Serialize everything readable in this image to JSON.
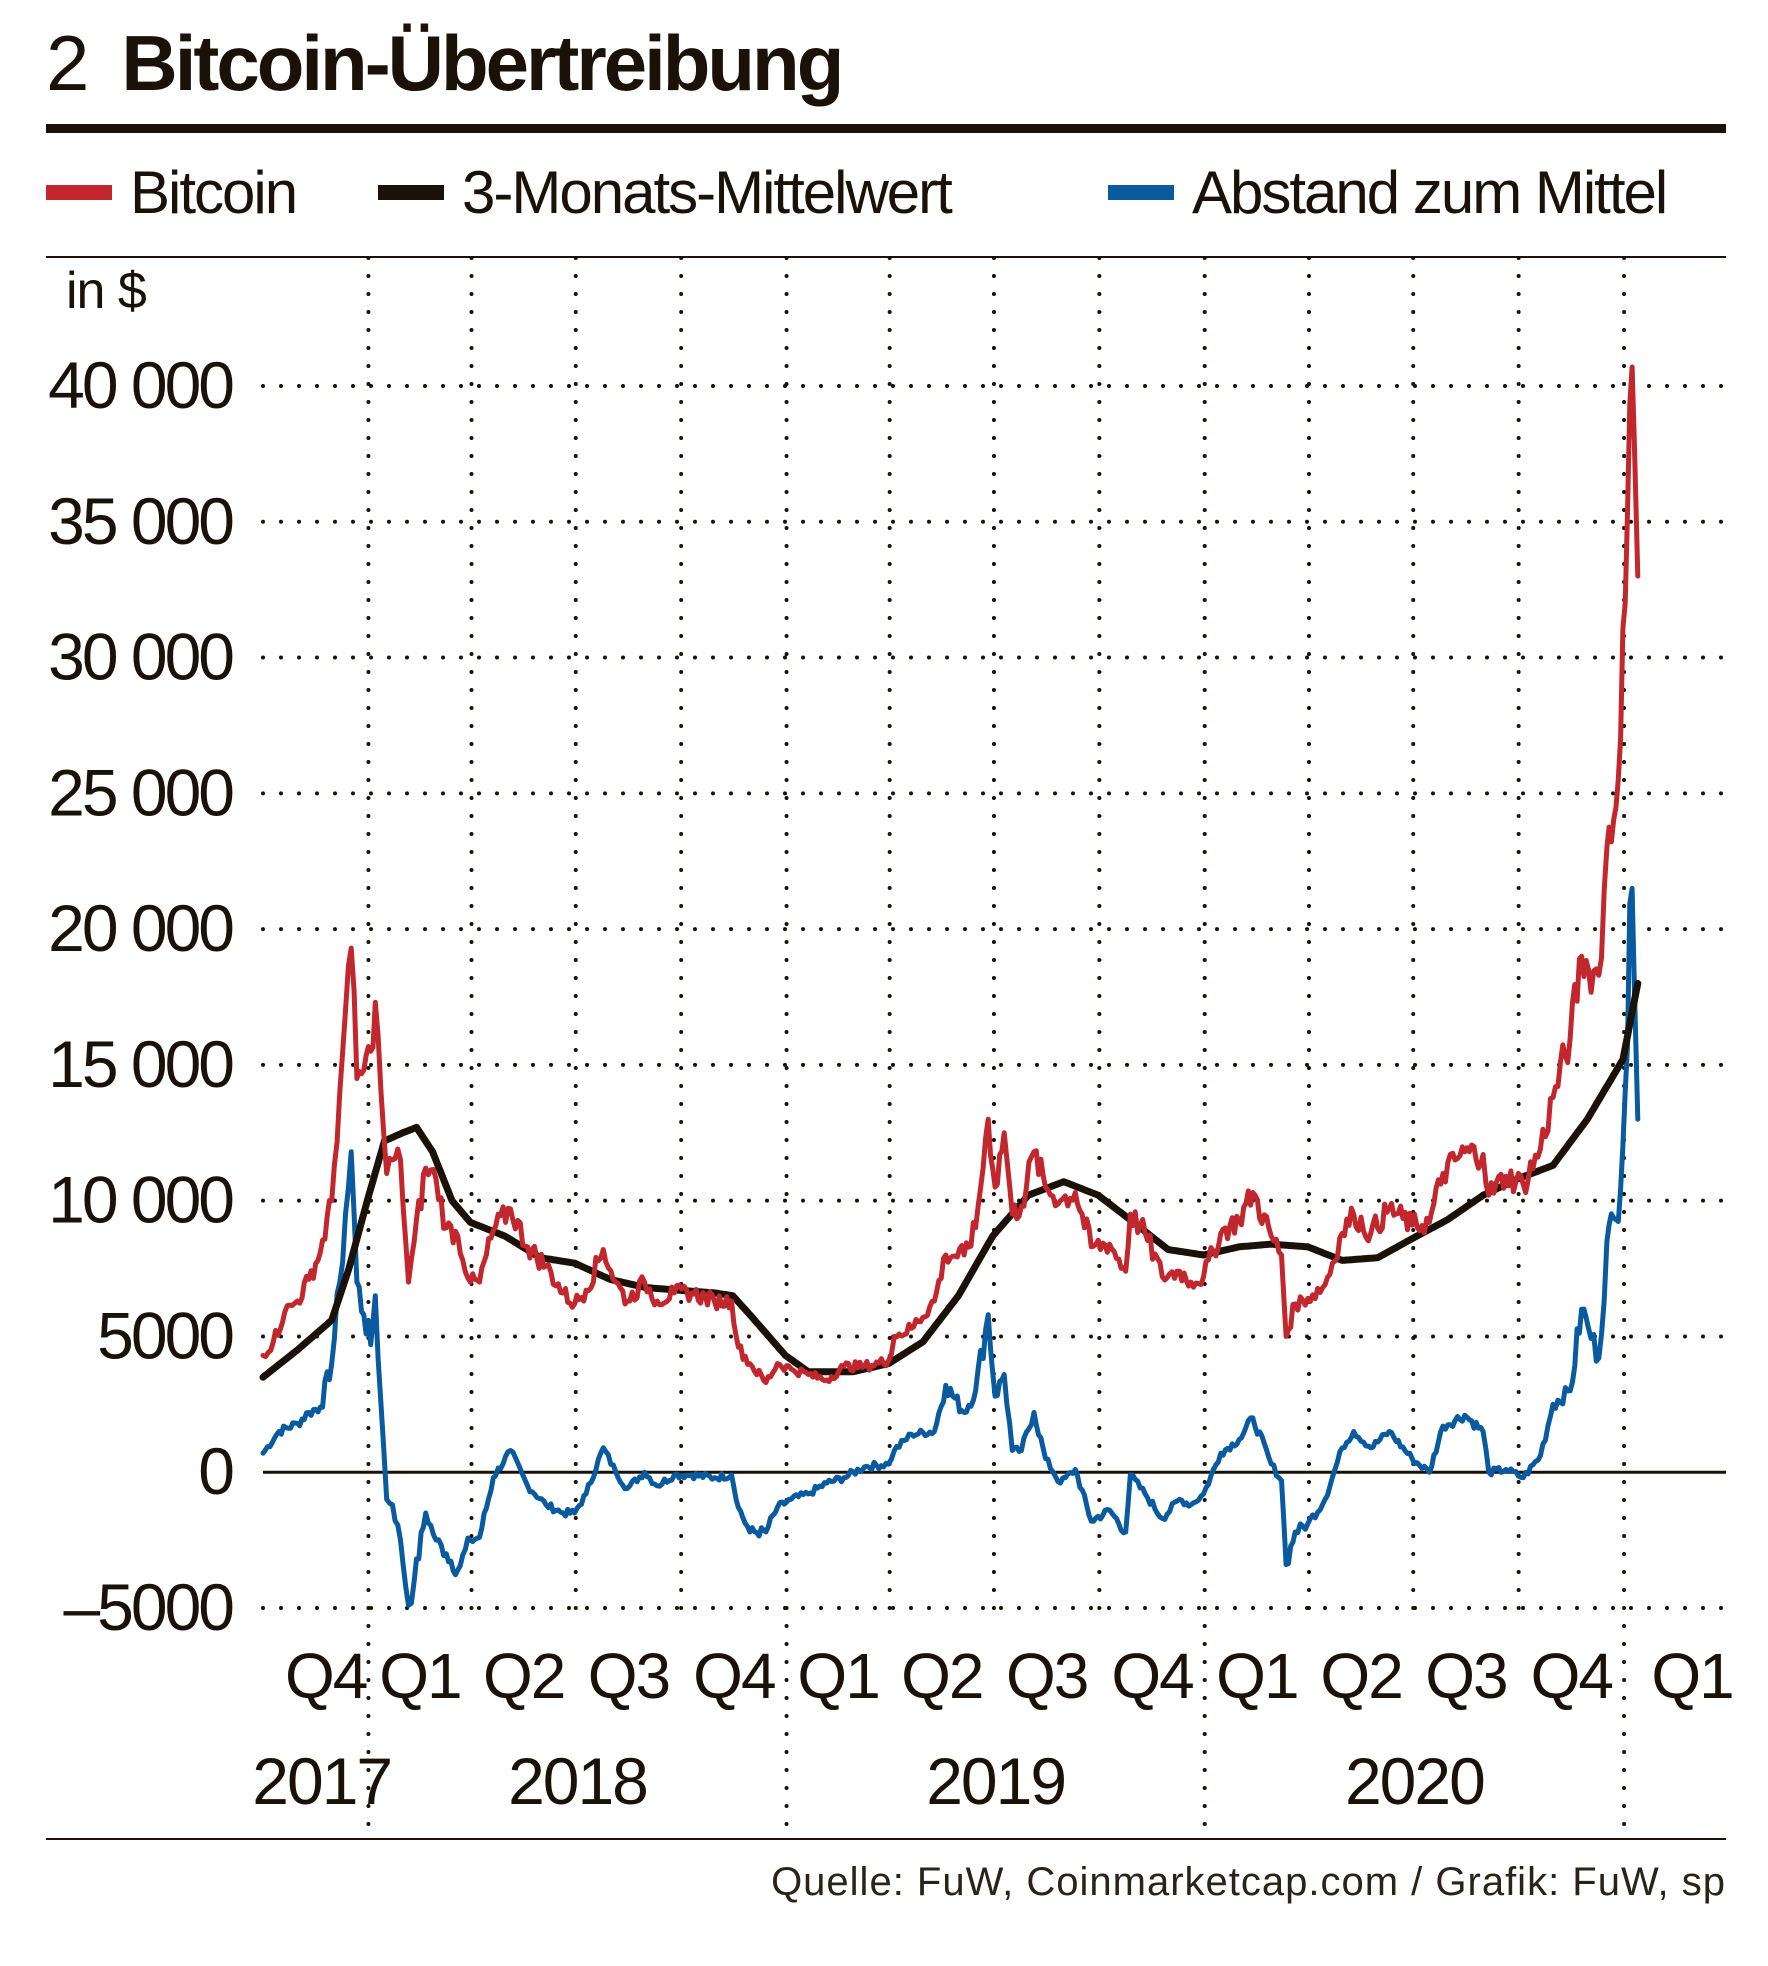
{
  "header": {
    "number": "2",
    "title": "Bitcoin-Übertreibung"
  },
  "legend": [
    {
      "label": "Bitcoin",
      "color": "#c1272d"
    },
    {
      "label": "3-Monats-Mittelwert",
      "color": "#1a1208"
    },
    {
      "label": "Abstand zum Mittel",
      "color": "#0a5aa0"
    }
  ],
  "source": "Quelle: FuW, Coinmarketcap.com / Grafik: FuW, sp",
  "chart_data": {
    "type": "line",
    "unit_label": "in $",
    "ylim": [
      -5000,
      40000
    ],
    "yticks": [
      {
        "value": 40000,
        "label": "40 000"
      },
      {
        "value": 35000,
        "label": "35 000"
      },
      {
        "value": 30000,
        "label": "30 000"
      },
      {
        "value": 25000,
        "label": "25 000"
      },
      {
        "value": 20000,
        "label": "20 000"
      },
      {
        "value": 15000,
        "label": "15 000"
      },
      {
        "value": 10000,
        "label": "10 000"
      },
      {
        "value": 5000,
        "label": "5000"
      },
      {
        "value": 0,
        "label": "0"
      },
      {
        "value": -5000,
        "label": "–5000"
      }
    ],
    "xlim": [
      "2017-10-01",
      "2021-03-31"
    ],
    "x_quarter_labels": [
      "Q4",
      "Q1",
      "Q2",
      "Q3",
      "Q4",
      "Q1",
      "Q2",
      "Q3",
      "Q4",
      "Q1",
      "Q2",
      "Q3",
      "Q4",
      "Q1"
    ],
    "x_year_labels": [
      "2017",
      "2018",
      "2019",
      "2020"
    ],
    "grid": "dotted",
    "legend_position": "top",
    "series": [
      {
        "name": "Bitcoin",
        "color": "#c1272d",
        "points": [
          [
            "2017-10-01",
            4300
          ],
          [
            "2017-10-10",
            4800
          ],
          [
            "2017-10-20",
            5900
          ],
          [
            "2017-10-31",
            6300
          ],
          [
            "2017-11-10",
            7100
          ],
          [
            "2017-11-20",
            8100
          ],
          [
            "2017-11-30",
            10000
          ],
          [
            "2017-12-07",
            14000
          ],
          [
            "2017-12-12",
            17000
          ],
          [
            "2017-12-17",
            19300
          ],
          [
            "2017-12-22",
            14500
          ],
          [
            "2017-12-28",
            14800
          ],
          [
            "2018-01-03",
            15500
          ],
          [
            "2018-01-07",
            17300
          ],
          [
            "2018-01-12",
            14000
          ],
          [
            "2018-01-17",
            11000
          ],
          [
            "2018-01-22",
            11500
          ],
          [
            "2018-01-29",
            11500
          ],
          [
            "2018-02-05",
            7000
          ],
          [
            "2018-02-10",
            8500
          ],
          [
            "2018-02-20",
            11200
          ],
          [
            "2018-03-01",
            10800
          ],
          [
            "2018-03-10",
            9000
          ],
          [
            "2018-03-20",
            8700
          ],
          [
            "2018-03-31",
            7000
          ],
          [
            "2018-04-08",
            7000
          ],
          [
            "2018-04-20",
            8900
          ],
          [
            "2018-05-05",
            9700
          ],
          [
            "2018-05-20",
            8300
          ],
          [
            "2018-06-05",
            7600
          ],
          [
            "2018-06-20",
            6600
          ],
          [
            "2018-06-30",
            6200
          ],
          [
            "2018-07-10",
            6700
          ],
          [
            "2018-07-25",
            8200
          ],
          [
            "2018-08-05",
            7000
          ],
          [
            "2018-08-15",
            6300
          ],
          [
            "2018-08-30",
            7000
          ],
          [
            "2018-09-10",
            6300
          ],
          [
            "2018-09-25",
            6600
          ],
          [
            "2018-10-10",
            6600
          ],
          [
            "2018-10-30",
            6300
          ],
          [
            "2018-11-14",
            6300
          ],
          [
            "2018-11-20",
            4600
          ],
          [
            "2018-11-30",
            4000
          ],
          [
            "2018-12-14",
            3300
          ],
          [
            "2018-12-24",
            4000
          ],
          [
            "2019-01-05",
            3800
          ],
          [
            "2019-01-20",
            3600
          ],
          [
            "2019-02-05",
            3400
          ],
          [
            "2019-02-20",
            3900
          ],
          [
            "2019-03-10",
            3900
          ],
          [
            "2019-03-31",
            4100
          ],
          [
            "2019-04-05",
            5000
          ],
          [
            "2019-04-20",
            5300
          ],
          [
            "2019-05-10",
            6300
          ],
          [
            "2019-05-20",
            8000
          ],
          [
            "2019-06-05",
            8000
          ],
          [
            "2019-06-15",
            9000
          ],
          [
            "2019-06-26",
            13000
          ],
          [
            "2019-07-02",
            10500
          ],
          [
            "2019-07-10",
            12500
          ],
          [
            "2019-07-17",
            9500
          ],
          [
            "2019-07-25",
            9800
          ],
          [
            "2019-08-05",
            11800
          ],
          [
            "2019-08-15",
            10500
          ],
          [
            "2019-08-28",
            10000
          ],
          [
            "2019-09-10",
            10300
          ],
          [
            "2019-09-24",
            8300
          ],
          [
            "2019-10-10",
            8400
          ],
          [
            "2019-10-24",
            7400
          ],
          [
            "2019-10-28",
            9500
          ],
          [
            "2019-11-10",
            8800
          ],
          [
            "2019-11-25",
            7200
          ],
          [
            "2019-12-10",
            7400
          ],
          [
            "2019-12-20",
            7000
          ],
          [
            "2019-12-31",
            7200
          ],
          [
            "2020-01-15",
            8800
          ],
          [
            "2020-01-31",
            9300
          ],
          [
            "2020-02-12",
            10300
          ],
          [
            "2020-02-28",
            8700
          ],
          [
            "2020-03-08",
            8000
          ],
          [
            "2020-03-12",
            5000
          ],
          [
            "2020-03-20",
            6200
          ],
          [
            "2020-03-31",
            6400
          ],
          [
            "2020-04-15",
            6900
          ],
          [
            "2020-04-30",
            8800
          ],
          [
            "2020-05-10",
            9500
          ],
          [
            "2020-05-25",
            8800
          ],
          [
            "2020-06-10",
            9700
          ],
          [
            "2020-06-30",
            9100
          ],
          [
            "2020-07-15",
            9200
          ],
          [
            "2020-07-27",
            11000
          ],
          [
            "2020-08-15",
            11800
          ],
          [
            "2020-08-31",
            11700
          ],
          [
            "2020-09-05",
            10200
          ],
          [
            "2020-09-20",
            10900
          ],
          [
            "2020-10-05",
            10600
          ],
          [
            "2020-10-20",
            11900
          ],
          [
            "2020-10-31",
            13800
          ],
          [
            "2020-11-15",
            16000
          ],
          [
            "2020-11-25",
            19000
          ],
          [
            "2020-12-01",
            18500
          ],
          [
            "2020-12-10",
            18300
          ],
          [
            "2020-12-17",
            23000
          ],
          [
            "2020-12-25",
            24500
          ],
          [
            "2021-01-02",
            32000
          ],
          [
            "2021-01-08",
            40700
          ],
          [
            "2021-01-10",
            38000
          ],
          [
            "2021-01-13",
            33000
          ]
        ]
      },
      {
        "name": "3-Monats-Mittelwert",
        "color": "#1a1208",
        "points": [
          [
            "2017-10-01",
            3500
          ],
          [
            "2017-10-31",
            4500
          ],
          [
            "2017-11-30",
            5600
          ],
          [
            "2017-12-15",
            7500
          ],
          [
            "2017-12-31",
            10000
          ],
          [
            "2018-01-15",
            12200
          ],
          [
            "2018-01-31",
            12500
          ],
          [
            "2018-02-12",
            12700
          ],
          [
            "2018-02-26",
            11800
          ],
          [
            "2018-03-15",
            10000
          ],
          [
            "2018-03-31",
            9200
          ],
          [
            "2018-04-30",
            8700
          ],
          [
            "2018-05-31",
            7900
          ],
          [
            "2018-06-30",
            7700
          ],
          [
            "2018-07-31",
            7100
          ],
          [
            "2018-08-31",
            6800
          ],
          [
            "2018-09-30",
            6700
          ],
          [
            "2018-10-31",
            6600
          ],
          [
            "2018-11-15",
            6500
          ],
          [
            "2018-11-30",
            5800
          ],
          [
            "2018-12-31",
            4300
          ],
          [
            "2019-01-20",
            3700
          ],
          [
            "2019-02-28",
            3700
          ],
          [
            "2019-03-31",
            4000
          ],
          [
            "2019-04-30",
            4800
          ],
          [
            "2019-05-31",
            6500
          ],
          [
            "2019-06-30",
            8700
          ],
          [
            "2019-07-31",
            10200
          ],
          [
            "2019-08-31",
            10700
          ],
          [
            "2019-09-30",
            10200
          ],
          [
            "2019-10-31",
            9200
          ],
          [
            "2019-11-30",
            8200
          ],
          [
            "2019-12-31",
            8000
          ],
          [
            "2020-01-31",
            8300
          ],
          [
            "2020-02-28",
            8400
          ],
          [
            "2020-03-31",
            8300
          ],
          [
            "2020-04-30",
            7800
          ],
          [
            "2020-05-31",
            7900
          ],
          [
            "2020-06-30",
            8600
          ],
          [
            "2020-07-31",
            9300
          ],
          [
            "2020-08-31",
            10200
          ],
          [
            "2020-09-30",
            10800
          ],
          [
            "2020-10-31",
            11300
          ],
          [
            "2020-11-30",
            13000
          ],
          [
            "2020-12-31",
            15200
          ],
          [
            "2021-01-13",
            18000
          ]
        ]
      },
      {
        "name": "Abstand zum Mittel",
        "color": "#0a5aa0",
        "points": [
          [
            "2017-10-01",
            700
          ],
          [
            "2017-10-15",
            1500
          ],
          [
            "2017-10-31",
            1800
          ],
          [
            "2017-11-10",
            2200
          ],
          [
            "2017-11-20",
            2400
          ],
          [
            "2017-11-30",
            4000
          ],
          [
            "2017-12-07",
            7000
          ],
          [
            "2017-12-12",
            9500
          ],
          [
            "2017-12-17",
            11800
          ],
          [
            "2017-12-22",
            7000
          ],
          [
            "2017-12-28",
            5800
          ],
          [
            "2018-01-03",
            4700
          ],
          [
            "2018-01-07",
            6500
          ],
          [
            "2018-01-12",
            2500
          ],
          [
            "2018-01-17",
            -1000
          ],
          [
            "2018-01-22",
            -1200
          ],
          [
            "2018-01-29",
            -2500
          ],
          [
            "2018-02-05",
            -4900
          ],
          [
            "2018-02-10",
            -4000
          ],
          [
            "2018-02-20",
            -1500
          ],
          [
            "2018-03-01",
            -2500
          ],
          [
            "2018-03-10",
            -3000
          ],
          [
            "2018-03-20",
            -3600
          ],
          [
            "2018-03-31",
            -2500
          ],
          [
            "2018-04-08",
            -2400
          ],
          [
            "2018-04-20",
            -200
          ],
          [
            "2018-05-05",
            800
          ],
          [
            "2018-05-20",
            -500
          ],
          [
            "2018-06-05",
            -1200
          ],
          [
            "2018-06-20",
            -1500
          ],
          [
            "2018-06-30",
            -1500
          ],
          [
            "2018-07-10",
            -800
          ],
          [
            "2018-07-25",
            900
          ],
          [
            "2018-08-05",
            0
          ],
          [
            "2018-08-15",
            -600
          ],
          [
            "2018-08-30",
            0
          ],
          [
            "2018-09-10",
            -500
          ],
          [
            "2018-09-25",
            -100
          ],
          [
            "2018-10-10",
            -100
          ],
          [
            "2018-10-30",
            -200
          ],
          [
            "2018-11-14",
            -100
          ],
          [
            "2018-11-20",
            -1300
          ],
          [
            "2018-11-30",
            -2200
          ],
          [
            "2018-12-14",
            -2200
          ],
          [
            "2018-12-24",
            -1300
          ],
          [
            "2019-01-05",
            -1000
          ],
          [
            "2019-01-20",
            -800
          ],
          [
            "2019-02-05",
            -400
          ],
          [
            "2019-02-20",
            -200
          ],
          [
            "2019-03-10",
            200
          ],
          [
            "2019-03-31",
            300
          ],
          [
            "2019-04-05",
            800
          ],
          [
            "2019-04-20",
            1400
          ],
          [
            "2019-05-10",
            1500
          ],
          [
            "2019-05-20",
            3200
          ],
          [
            "2019-06-05",
            2200
          ],
          [
            "2019-06-15",
            3000
          ],
          [
            "2019-06-26",
            5800
          ],
          [
            "2019-07-02",
            2800
          ],
          [
            "2019-07-10",
            3600
          ],
          [
            "2019-07-17",
            800
          ],
          [
            "2019-07-25",
            800
          ],
          [
            "2019-08-05",
            2200
          ],
          [
            "2019-08-15",
            500
          ],
          [
            "2019-08-28",
            -400
          ],
          [
            "2019-09-10",
            100
          ],
          [
            "2019-09-24",
            -1800
          ],
          [
            "2019-10-10",
            -1400
          ],
          [
            "2019-10-24",
            -2200
          ],
          [
            "2019-10-28",
            -100
          ],
          [
            "2019-11-10",
            -800
          ],
          [
            "2019-11-25",
            -1700
          ],
          [
            "2019-12-10",
            -1000
          ],
          [
            "2019-12-20",
            -1200
          ],
          [
            "2019-12-31",
            -800
          ],
          [
            "2020-01-15",
            700
          ],
          [
            "2020-01-31",
            1200
          ],
          [
            "2020-02-12",
            2000
          ],
          [
            "2020-02-28",
            300
          ],
          [
            "2020-03-08",
            -300
          ],
          [
            "2020-03-12",
            -3400
          ],
          [
            "2020-03-20",
            -2200
          ],
          [
            "2020-03-31",
            -1900
          ],
          [
            "2020-04-15",
            -1000
          ],
          [
            "2020-04-30",
            900
          ],
          [
            "2020-05-10",
            1500
          ],
          [
            "2020-05-25",
            900
          ],
          [
            "2020-06-10",
            1500
          ],
          [
            "2020-06-30",
            500
          ],
          [
            "2020-07-15",
            0
          ],
          [
            "2020-07-27",
            1700
          ],
          [
            "2020-08-15",
            2100
          ],
          [
            "2020-08-31",
            1500
          ],
          [
            "2020-09-05",
            0
          ],
          [
            "2020-09-20",
            100
          ],
          [
            "2020-10-05",
            -200
          ],
          [
            "2020-10-20",
            600
          ],
          [
            "2020-10-31",
            2500
          ],
          [
            "2020-11-15",
            3000
          ],
          [
            "2020-11-25",
            6000
          ],
          [
            "2020-12-01",
            5300
          ],
          [
            "2020-12-10",
            4200
          ],
          [
            "2020-12-17",
            8500
          ],
          [
            "2020-12-25",
            9300
          ],
          [
            "2021-01-02",
            14000
          ],
          [
            "2021-01-08",
            21500
          ],
          [
            "2021-01-10",
            18000
          ],
          [
            "2021-01-13",
            13000
          ]
        ]
      }
    ]
  }
}
